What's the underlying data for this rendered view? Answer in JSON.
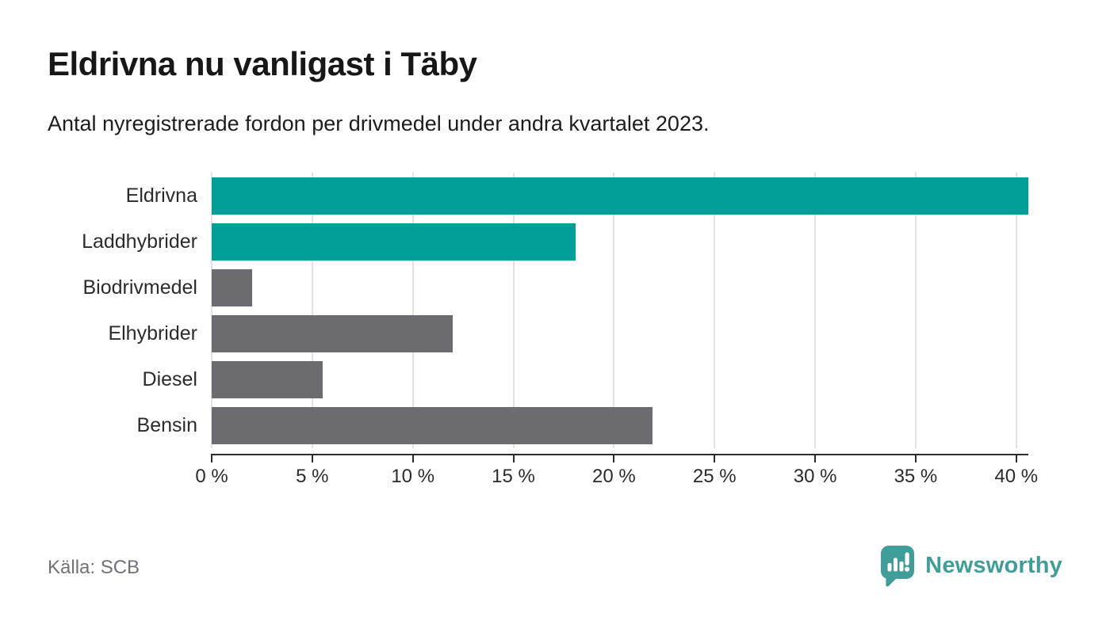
{
  "header": {
    "title": "Eldrivna nu vanligast i Täby",
    "subtitle": "Antal nyregistrerade fordon per drivmedel under andra kvartalet 2023."
  },
  "chart_data": {
    "type": "bar",
    "orientation": "horizontal",
    "title": "Eldrivna nu vanligast i Täby",
    "subtitle": "Antal nyregistrerade fordon per drivmedel under andra kvartalet 2023.",
    "categories": [
      "Eldrivna",
      "Laddhybrider",
      "Biodrivmedel",
      "Elhybrider",
      "Diesel",
      "Bensin"
    ],
    "values": [
      40.6,
      18.1,
      2.0,
      12.0,
      5.5,
      21.9
    ],
    "unit": "%",
    "xlim": [
      0,
      40.6
    ],
    "x_ticks": [
      0,
      5,
      10,
      15,
      20,
      25,
      30,
      35,
      40
    ],
    "x_tick_suffix": " %",
    "grid": "vertical",
    "legend": "none",
    "bar_colors": [
      "#00a099",
      "#00a099",
      "#6b6b70",
      "#6b6b70",
      "#6b6b70",
      "#6b6b70"
    ],
    "highlight_color": "#00a099",
    "default_color": "#6b6b70"
  },
  "footer": {
    "source": "Källa: SCB",
    "brand": "Newsworthy"
  },
  "colors": {
    "accent_teal": "#00a099",
    "neutral_gray": "#6b6b70",
    "brand_teal": "#3f9e99",
    "axis": "#2b2b2b",
    "gridline": "#e2e2e2"
  }
}
